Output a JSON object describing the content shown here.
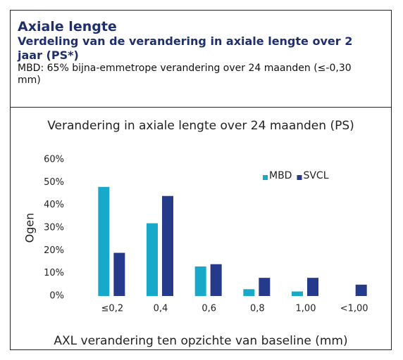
{
  "header": {
    "title": "Axiale lengte",
    "subtitle": "Verdeling van de verandering in axiale lengte over 2 jaar (PS*)",
    "note": "MBD: 65% bijna-emmetrope verandering over 24 maanden (≤-0,30 mm)"
  },
  "chart_data": {
    "type": "bar",
    "title": "Verandering in axiale lengte over 24 maanden (PS)",
    "x_label": "AXL verandering ten opzichte van baseline (mm)",
    "y_label": "Ogen",
    "categories": [
      "≤0,2",
      "0,4",
      "0,6",
      "0,8",
      "1,00",
      "<1,00"
    ],
    "series": [
      {
        "name": "MBD",
        "color": "#17a9c9",
        "values": [
          48,
          32,
          13,
          3,
          2,
          0
        ]
      },
      {
        "name": "SVCL",
        "color": "#253a8a",
        "values": [
          19,
          44,
          14,
          8,
          8,
          5
        ]
      }
    ],
    "ylim": [
      0,
      60
    ],
    "yticks": [
      {
        "value": 0,
        "label": "0%"
      },
      {
        "value": 10,
        "label": "10%"
      },
      {
        "value": 20,
        "label": "20%"
      },
      {
        "value": 30,
        "label": "30%"
      },
      {
        "value": 40,
        "label": "40%"
      },
      {
        "value": 50,
        "label": "50%"
      },
      {
        "value": 60,
        "label": "60%"
      }
    ],
    "legend": "top-right"
  }
}
